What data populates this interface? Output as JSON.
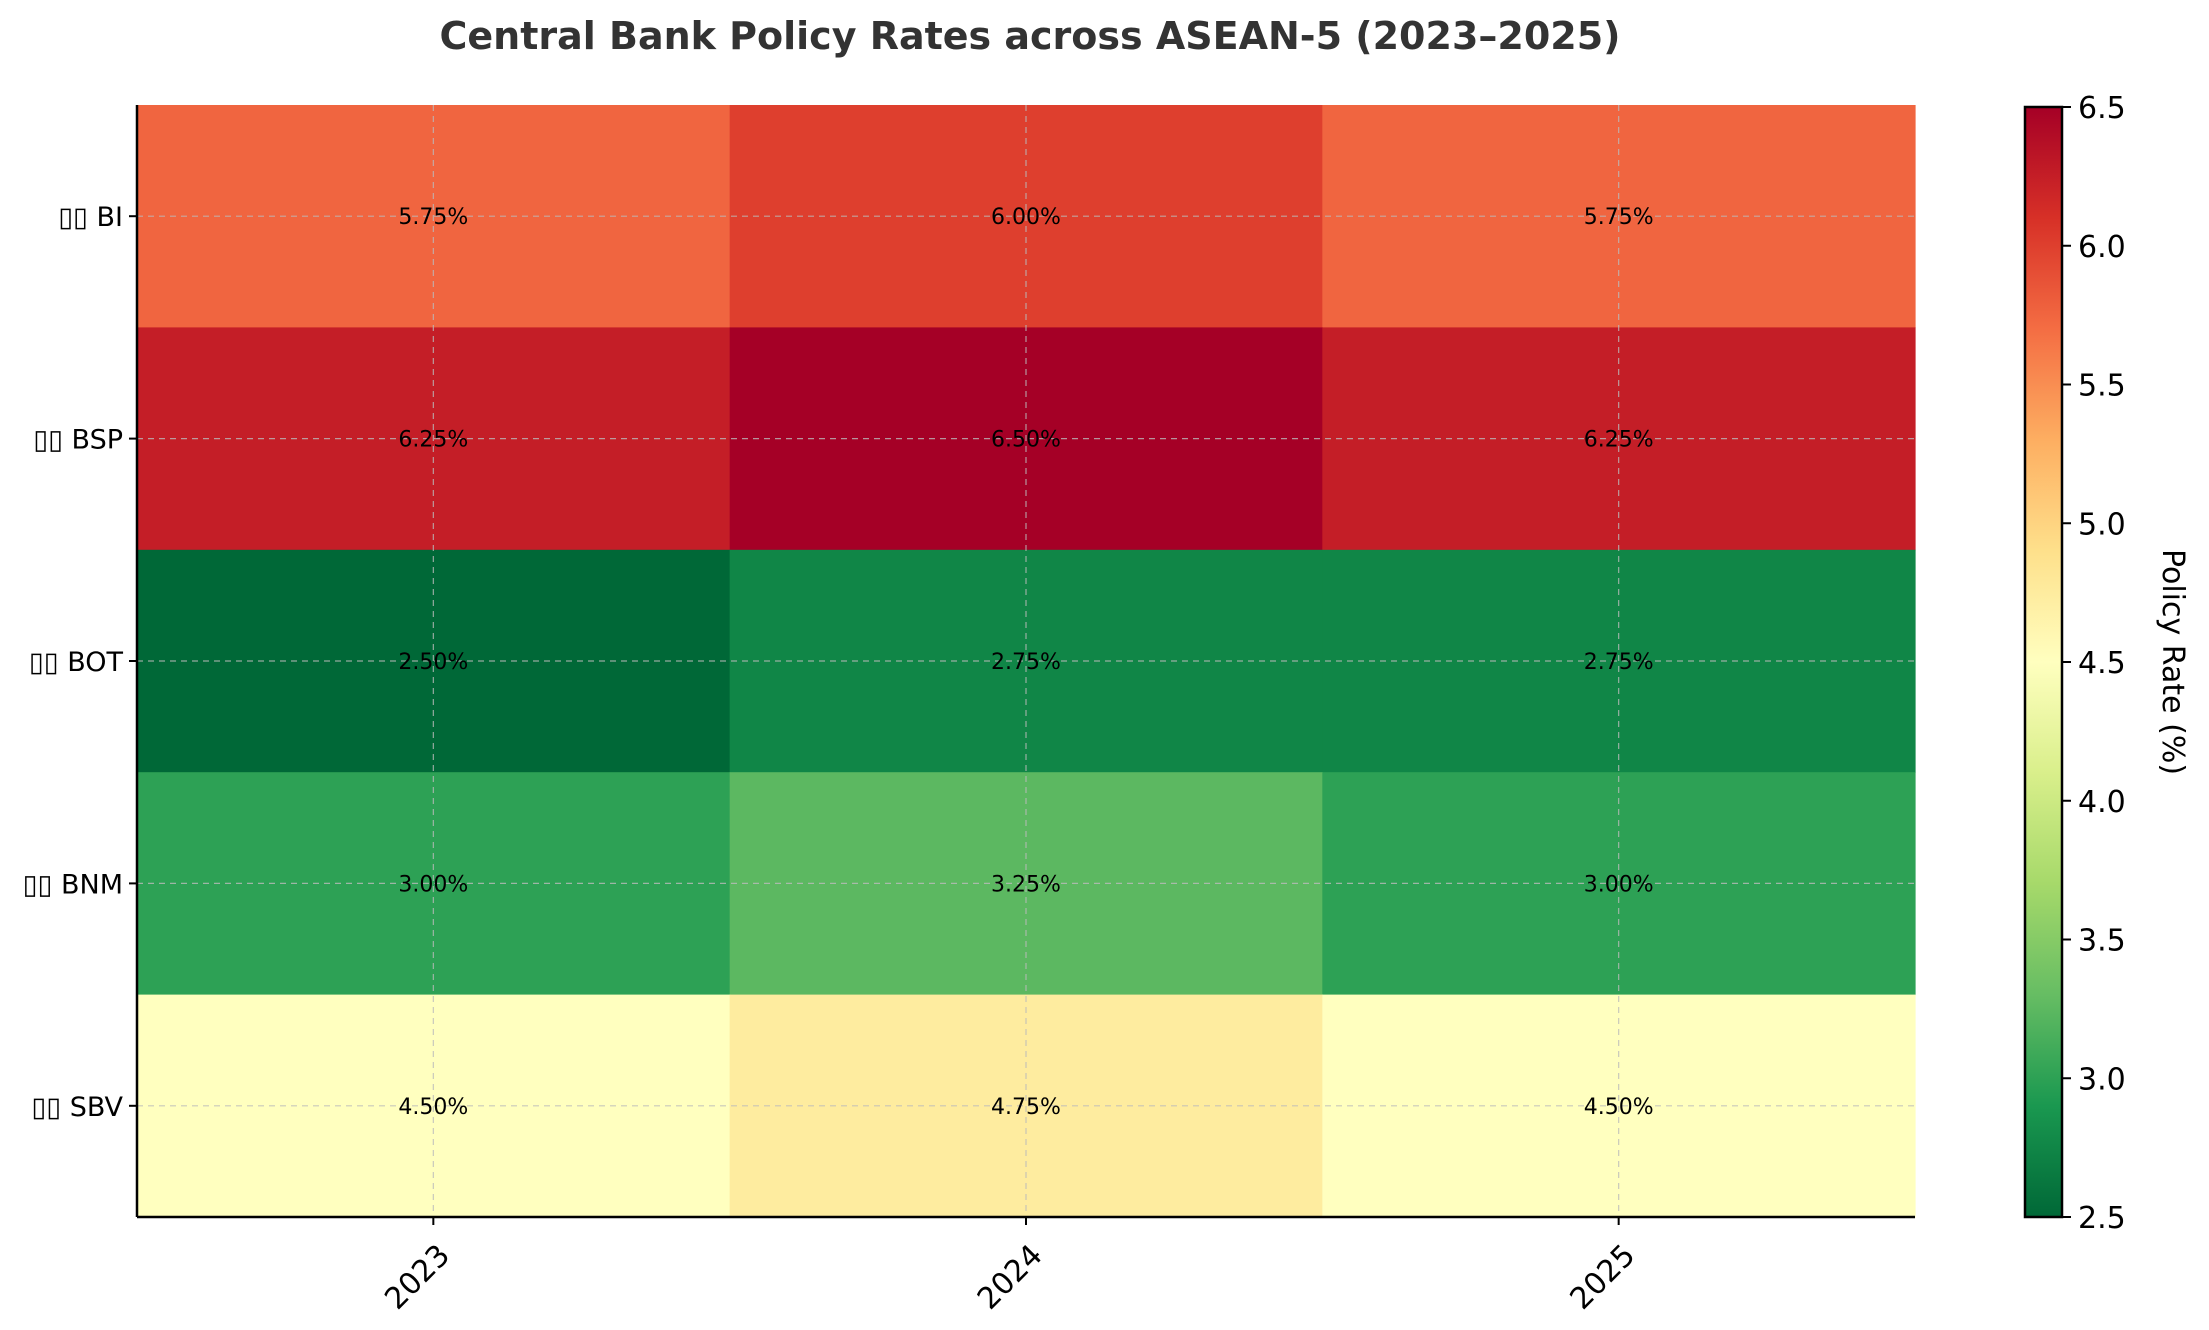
{
  "chart_data": {
    "type": "heatmap",
    "title": "Central Bank Policy Rates across ASEAN-5 (2023–2025)",
    "x": [
      "2023",
      "2024",
      "2025"
    ],
    "y": [
      "▯▯ BI",
      "▯▯ BSP",
      "▯▯ BOT",
      "▯▯ BNM",
      "▯▯ SBV"
    ],
    "values": [
      [
        5.75,
        6.0,
        5.75
      ],
      [
        6.25,
        6.5,
        6.25
      ],
      [
        2.5,
        2.75,
        2.75
      ],
      [
        3.0,
        3.25,
        3.0
      ],
      [
        4.5,
        4.75,
        4.5
      ]
    ],
    "cell_labels": [
      [
        "5.75%",
        "6.00%",
        "5.75%"
      ],
      [
        "6.25%",
        "6.50%",
        "6.25%"
      ],
      [
        "2.50%",
        "2.75%",
        "2.75%"
      ],
      [
        "3.00%",
        "3.25%",
        "3.00%"
      ],
      [
        "4.50%",
        "4.75%",
        "4.50%"
      ]
    ],
    "colorscale": "RdYlGn_r",
    "colorbar": {
      "label": "Policy Rate (%)",
      "range": [
        2.5,
        6.5
      ],
      "ticks": [
        2.5,
        3.0,
        3.5,
        4.0,
        4.5,
        5.0,
        5.5,
        6.0,
        6.5
      ],
      "tick_labels": [
        "2.5",
        "3.0",
        "3.5",
        "4.0",
        "4.5",
        "5.0",
        "5.5",
        "6.0",
        "6.5"
      ]
    },
    "grid": true
  }
}
